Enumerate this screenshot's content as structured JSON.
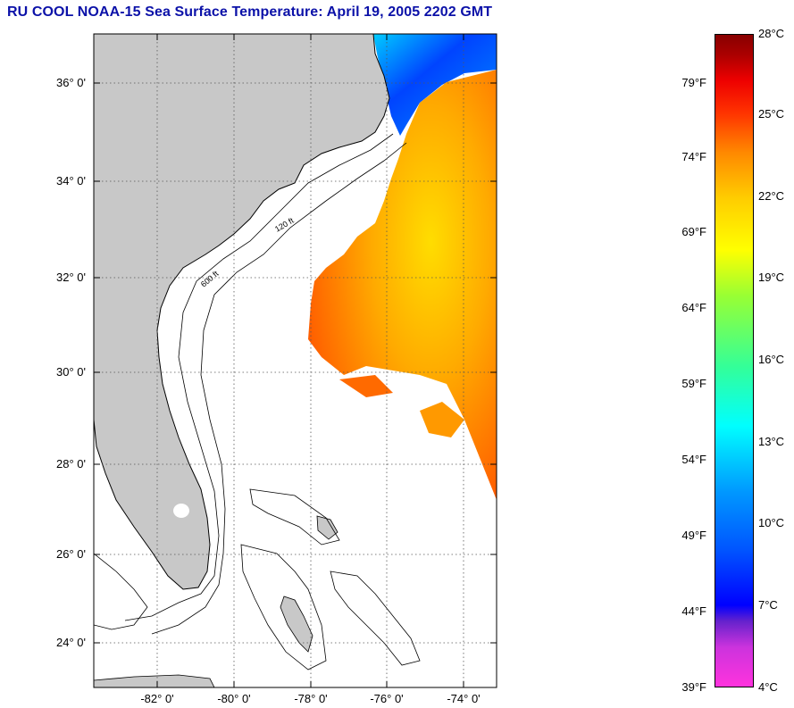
{
  "title": "RU COOL  NOAA-15  Sea Surface Temperature:  April 19, 2005 2202 GMT",
  "latitude_labels": [
    "36° 0'",
    "34° 0'",
    "32° 0'",
    "30° 0'",
    "28° 0'",
    "26° 0'",
    "24° 0'"
  ],
  "longitude_labels": [
    "-82° 0'",
    "-80° 0'",
    "-78° 0'",
    "-76° 0'",
    "-74° 0'"
  ],
  "colorbar": {
    "fahrenheit_labels": [
      "79°F",
      "74°F",
      "69°F",
      "64°F",
      "59°F",
      "54°F",
      "49°F",
      "44°F",
      "39°F"
    ],
    "celsius_labels": [
      "28°C",
      "25°C",
      "22°C",
      "19°C",
      "16°C",
      "13°C",
      "10°C",
      "7°C",
      "4°C"
    ]
  },
  "contour_labels": [
    "120 ft",
    "600 ft"
  ],
  "colors": {
    "title": "#0b11a8",
    "land": "#c8c8c8",
    "cold": "#0033ff",
    "warm": "#ff6600"
  }
}
